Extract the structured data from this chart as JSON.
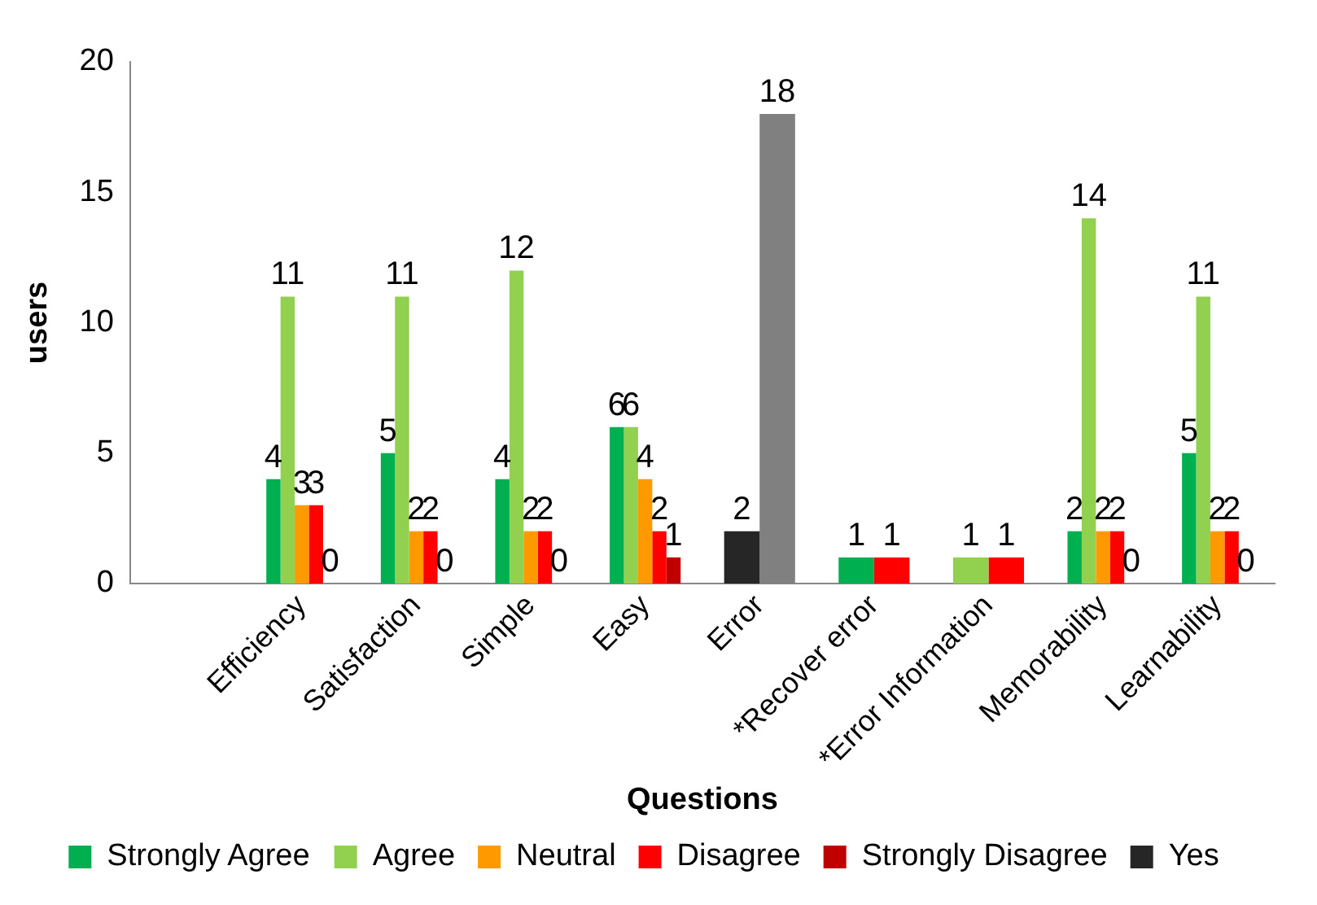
{
  "chart_data": {
    "type": "bar",
    "xlabel": "Questions",
    "ylabel": "users",
    "categories": [
      null,
      "Efficiency",
      "Satisfaction",
      "Simple",
      "Easy",
      "Error",
      "*Recover error",
      "*Error Information",
      "Memorability",
      "Learnability"
    ],
    "series": [
      {
        "name": "Strongly Agree",
        "color": "#00b050",
        "values": [
          null,
          4,
          5,
          4,
          6,
          null,
          1,
          null,
          2,
          5
        ]
      },
      {
        "name": "Agree",
        "color": "#92d050",
        "values": [
          null,
          11,
          11,
          12,
          6,
          null,
          null,
          1,
          14,
          11
        ]
      },
      {
        "name": "Neutral",
        "color": "#ff9900",
        "values": [
          null,
          3,
          2,
          2,
          4,
          null,
          null,
          null,
          2,
          2
        ]
      },
      {
        "name": "Disagree",
        "color": "#ff0000",
        "values": [
          null,
          3,
          2,
          2,
          2,
          null,
          1,
          1,
          2,
          2
        ]
      },
      {
        "name": "Strongly Disagree",
        "color": "#c00000",
        "values": [
          null,
          0,
          0,
          0,
          1,
          null,
          null,
          null,
          0,
          0
        ]
      },
      {
        "name": "Yes",
        "color": "#262626",
        "values": [
          null,
          null,
          null,
          null,
          null,
          2,
          null,
          null,
          null,
          null
        ]
      },
      {
        "color": "#808080",
        "values": [
          null,
          null,
          null,
          null,
          null,
          18,
          null,
          null,
          null,
          null
        ]
      }
    ],
    "ylim": [
      0,
      20
    ],
    "yticks": [
      0,
      5,
      10,
      15,
      20
    ],
    "grid": false,
    "legend": "bottom",
    "data_labels": true
  }
}
